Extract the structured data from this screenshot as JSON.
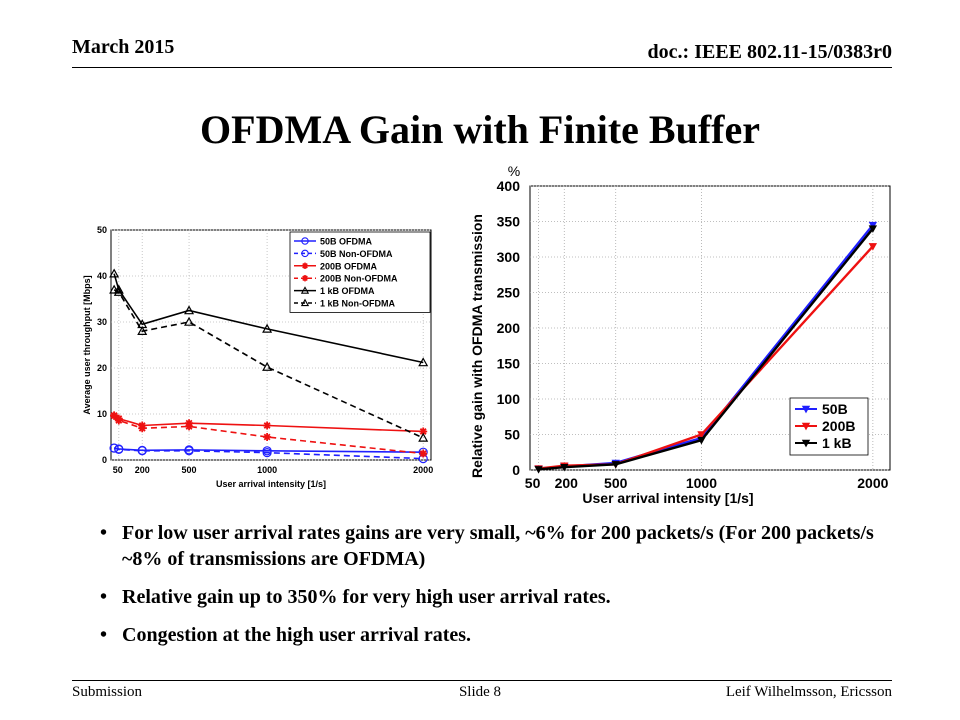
{
  "header": {
    "date": "March 2015",
    "doc_id": "doc.: IEEE 802.11-15/0383r0"
  },
  "slide_title": "OFDMA Gain with Finite Buffer",
  "colors": {
    "blue": "#2020ff",
    "red": "#ee1111",
    "black": "#000000"
  },
  "chart_data": [
    {
      "type": "line",
      "xlabel": "User arrival intensity [1/s]",
      "ylabel": "Average user throughput [Mbps]",
      "xlim": [
        0,
        2050
      ],
      "ylim": [
        0,
        50
      ],
      "x_ticks": [
        50,
        200,
        500,
        1000,
        2000
      ],
      "y_ticks": [
        0,
        10,
        20,
        30,
        40,
        50
      ],
      "grid": true,
      "legend_position": "top-right",
      "series": [
        {
          "name": "50B OFDMA",
          "color": "blue",
          "dash": false,
          "marker": "circle",
          "x": [
            20,
            50,
            200,
            500,
            1000,
            2000
          ],
          "y": [
            2.6,
            2.4,
            2.1,
            2.2,
            2.0,
            1.7
          ]
        },
        {
          "name": "50B Non-OFDMA",
          "color": "blue",
          "dash": true,
          "marker": "circle",
          "x": [
            20,
            50,
            200,
            500,
            1000,
            2000
          ],
          "y": [
            2.6,
            2.3,
            2.0,
            2.0,
            1.6,
            0.3
          ]
        },
        {
          "name": "200B OFDMA",
          "color": "red",
          "dash": false,
          "marker": "star",
          "x": [
            20,
            50,
            200,
            500,
            1000,
            2000
          ],
          "y": [
            9.7,
            9.0,
            7.5,
            8.0,
            7.5,
            6.2
          ]
        },
        {
          "name": "200B Non-OFDMA",
          "color": "red",
          "dash": true,
          "marker": "star",
          "x": [
            20,
            50,
            200,
            500,
            1000,
            2000
          ],
          "y": [
            9.6,
            8.6,
            6.9,
            7.3,
            5.0,
            1.4
          ]
        },
        {
          "name": "1 kB OFDMA",
          "color": "black",
          "dash": false,
          "marker": "triangle",
          "x": [
            20,
            50,
            200,
            500,
            1000,
            2000
          ],
          "y": [
            40.5,
            37.0,
            29.5,
            32.5,
            28.5,
            21.2
          ]
        },
        {
          "name": "1 kB Non-OFDMA",
          "color": "black",
          "dash": true,
          "marker": "triangle",
          "x": [
            20,
            50,
            200,
            500,
            1000,
            2000
          ],
          "y": [
            37.0,
            36.5,
            28.0,
            30.0,
            20.2,
            4.8
          ]
        }
      ]
    },
    {
      "type": "line",
      "title": "",
      "xlabel": "User arrival intensity [1/s]",
      "ylabel": "Relative gain with OFDMA transmission",
      "y_unit": "%",
      "xlim": [
        0,
        2100
      ],
      "ylim": [
        0,
        400
      ],
      "x_ticks": [
        50,
        200,
        500,
        1000,
        2000
      ],
      "y_ticks": [
        0,
        50,
        100,
        150,
        200,
        250,
        300,
        350,
        400
      ],
      "grid": true,
      "legend_position": "bottom-right",
      "series": [
        {
          "name": "50B",
          "color": "blue",
          "marker": "triangle-down",
          "x": [
            50,
            200,
            500,
            1000,
            2000
          ],
          "y": [
            2,
            5,
            10,
            45,
            345
          ]
        },
        {
          "name": "200B",
          "color": "red",
          "marker": "triangle-down",
          "x": [
            50,
            200,
            500,
            1000,
            2000
          ],
          "y": [
            2,
            6,
            8,
            50,
            315
          ]
        },
        {
          "name": "1 kB",
          "color": "black",
          "marker": "triangle-down",
          "x": [
            50,
            200,
            500,
            1000,
            2000
          ],
          "y": [
            1,
            4,
            8,
            42,
            340
          ]
        }
      ]
    }
  ],
  "bullets": [
    "For low user arrival rates gains are very small, ~6% for 200 packets/s (For 200 packets/s  ~8% of transmissions are OFDMA)",
    "Relative gain up to 350% for very high user arrival rates.",
    "Congestion at the high user arrival rates."
  ],
  "footer": {
    "left": "Submission",
    "center": "Slide 8",
    "right": "Leif Wilhelmsson, Ericsson"
  }
}
